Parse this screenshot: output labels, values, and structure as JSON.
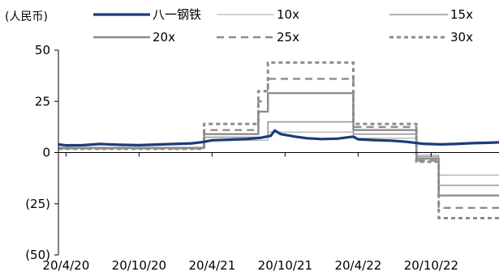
{
  "chart_data": {
    "type": "line",
    "title": "",
    "unit_label": "(人民币)",
    "xlabel": "",
    "ylabel": "",
    "x_tick_labels": [
      "20/4/20",
      "20/10/20",
      "20/4/21",
      "20/10/21",
      "20/4/22",
      "20/10/22"
    ],
    "x_tick_dates": [
      "2020-04-20",
      "2020-10-20",
      "2021-04-21",
      "2021-10-21",
      "2022-04-22",
      "2022-10-22"
    ],
    "xlim": [
      "2020-04-01",
      "2023-04-10"
    ],
    "y_ticks": [
      50,
      25,
      0,
      -25,
      -50
    ],
    "y_tick_labels": [
      "50",
      "25",
      "0",
      "(25)",
      "(50)"
    ],
    "ylim": [
      -50,
      50
    ],
    "grid": false,
    "legend_position": "top",
    "colors": {
      "price": "#1b3c78",
      "band_10x": "#a6a6a6",
      "band_15x": "#969696",
      "band_20x": "#8c8c8c",
      "band_25x": "#8c8c8c",
      "band_30x": "#8c8c8c",
      "axis": "#000000"
    },
    "series": [
      {
        "name": "八一钢铁",
        "style": "price",
        "points": [
          [
            "2020-04-01",
            4.0
          ],
          [
            "2020-04-20",
            3.5
          ],
          [
            "2020-06-01",
            3.6
          ],
          [
            "2020-07-15",
            4.2
          ],
          [
            "2020-09-01",
            3.8
          ],
          [
            "2020-10-20",
            3.6
          ],
          [
            "2020-12-01",
            3.9
          ],
          [
            "2021-01-15",
            4.2
          ],
          [
            "2021-03-01",
            4.5
          ],
          [
            "2021-04-01",
            5.2
          ],
          [
            "2021-04-21",
            6.0
          ],
          [
            "2021-06-01",
            6.3
          ],
          [
            "2021-07-15",
            6.6
          ],
          [
            "2021-08-20",
            7.2
          ],
          [
            "2021-09-15",
            8.2
          ],
          [
            "2021-09-25",
            10.8
          ],
          [
            "2021-10-10",
            9.0
          ],
          [
            "2021-11-15",
            7.8
          ],
          [
            "2021-12-15",
            7.0
          ],
          [
            "2022-01-20",
            6.6
          ],
          [
            "2022-03-01",
            6.8
          ],
          [
            "2022-04-10",
            7.8
          ],
          [
            "2022-04-22",
            6.5
          ],
          [
            "2022-06-01",
            6.1
          ],
          [
            "2022-07-15",
            5.8
          ],
          [
            "2022-08-20",
            5.3
          ],
          [
            "2022-10-01",
            4.3
          ],
          [
            "2022-11-15",
            4.0
          ],
          [
            "2022-12-20",
            4.2
          ],
          [
            "2023-02-01",
            4.6
          ],
          [
            "2023-03-15",
            4.8
          ],
          [
            "2023-04-10",
            5.0
          ]
        ]
      },
      {
        "name": "10x",
        "style": "band_10x",
        "segments": [
          [
            "2020-04-01",
            2.6
          ],
          [
            "2021-04-01",
            6.0
          ],
          [
            "2021-09-08",
            10.0
          ],
          [
            "2022-04-10",
            7.0
          ],
          [
            "2022-09-15",
            -1.2
          ],
          [
            "2022-11-10",
            -11.0
          ],
          [
            "2023-04-10",
            null
          ]
        ]
      },
      {
        "name": "15x",
        "style": "band_15x",
        "segments": [
          [
            "2020-04-01",
            2.4
          ],
          [
            "2021-04-01",
            7.5
          ],
          [
            "2021-09-08",
            15.0
          ],
          [
            "2022-04-10",
            9.0
          ],
          [
            "2022-09-15",
            -2.0
          ],
          [
            "2022-11-10",
            -16.0
          ],
          [
            "2023-04-10",
            null
          ]
        ]
      },
      {
        "name": "20x",
        "style": "band_20x",
        "segments": [
          [
            "2020-04-01",
            2.2
          ],
          [
            "2021-04-01",
            9.0
          ],
          [
            "2021-08-15",
            20.0
          ],
          [
            "2021-09-08",
            29.0
          ],
          [
            "2022-04-10",
            11.0
          ],
          [
            "2022-09-15",
            -3.0
          ],
          [
            "2022-11-10",
            -21.0
          ],
          [
            "2023-04-10",
            null
          ]
        ]
      },
      {
        "name": "25x",
        "style": "band_25x",
        "segments": [
          [
            "2020-04-01",
            2.0
          ],
          [
            "2021-04-01",
            11.0
          ],
          [
            "2021-08-15",
            25.0
          ],
          [
            "2021-09-08",
            36.0
          ],
          [
            "2022-04-10",
            12.5
          ],
          [
            "2022-09-15",
            -4.0
          ],
          [
            "2022-11-10",
            -27.0
          ],
          [
            "2023-04-10",
            null
          ]
        ]
      },
      {
        "name": "30x",
        "style": "band_30x",
        "segments": [
          [
            "2020-04-01",
            1.8
          ],
          [
            "2021-04-01",
            14.0
          ],
          [
            "2021-08-15",
            30.0
          ],
          [
            "2021-09-08",
            44.0
          ],
          [
            "2022-04-10",
            14.0
          ],
          [
            "2022-09-15",
            -4.5
          ],
          [
            "2022-11-10",
            -32.0
          ],
          [
            "2023-04-10",
            null
          ]
        ]
      }
    ]
  }
}
